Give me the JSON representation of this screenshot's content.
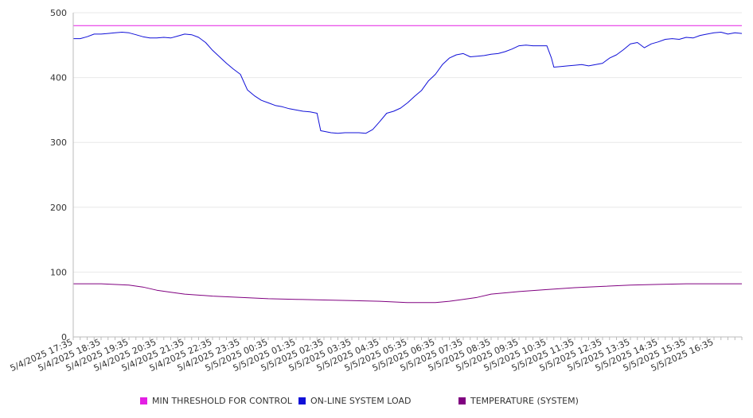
{
  "chart_data": {
    "type": "line",
    "title": "",
    "xlabel": "",
    "ylabel": "",
    "ylim": [
      0,
      500
    ],
    "yticks": [
      0,
      100,
      200,
      300,
      400,
      500
    ],
    "grid": true,
    "legend_position": "bottom",
    "x_tick_labels": [
      "5/4/2025 17:35",
      "5/4/2025 18:35",
      "5/4/2025 19:35",
      "5/4/2025 20:35",
      "5/4/2025 21:35",
      "5/4/2025 22:35",
      "5/4/2025 23:35",
      "5/5/2025 00:35",
      "5/5/2025 01:35",
      "5/5/2025 02:35",
      "5/5/2025 03:35",
      "5/5/2025 04:35",
      "5/5/2025 05:35",
      "5/5/2025 06:35",
      "5/5/2025 07:35",
      "5/5/2025 08:35",
      "5/5/2025 09:35",
      "5/5/2025 10:35",
      "5/5/2025 11:35",
      "5/5/2025 12:35",
      "5/5/2025 13:35",
      "5/5/2025 14:35",
      "5/5/2025 15:35",
      "5/5/2025 16:35"
    ],
    "x_range": [
      "5/4/2025 17:35",
      "5/5/2025 17:35"
    ],
    "series": [
      {
        "name": "MIN THRESHOLD FOR CONTROL",
        "color": "#e31fe3",
        "points": [
          [
            "5/4/2025 17:35",
            480
          ],
          [
            "5/5/2025 17:35",
            480
          ]
        ]
      },
      {
        "name": "ON-LINE SYSTEM LOAD",
        "color": "#1010d8",
        "points": [
          [
            "5/4/2025 17:35",
            460
          ],
          [
            "5/4/2025 17:50",
            460
          ],
          [
            "5/4/2025 18:05",
            463
          ],
          [
            "5/4/2025 18:20",
            467
          ],
          [
            "5/4/2025 18:35",
            467
          ],
          [
            "5/4/2025 18:50",
            468
          ],
          [
            "5/4/2025 19:05",
            469
          ],
          [
            "5/4/2025 19:20",
            470
          ],
          [
            "5/4/2025 19:35",
            469
          ],
          [
            "5/4/2025 19:50",
            466
          ],
          [
            "5/4/2025 20:05",
            463
          ],
          [
            "5/4/2025 20:20",
            461
          ],
          [
            "5/4/2025 20:35",
            461
          ],
          [
            "5/4/2025 20:50",
            462
          ],
          [
            "5/4/2025 21:05",
            461
          ],
          [
            "5/4/2025 21:20",
            464
          ],
          [
            "5/4/2025 21:35",
            467
          ],
          [
            "5/4/2025 21:50",
            466
          ],
          [
            "5/4/2025 22:05",
            462
          ],
          [
            "5/4/2025 22:20",
            454
          ],
          [
            "5/4/2025 22:35",
            442
          ],
          [
            "5/4/2025 22:50",
            432
          ],
          [
            "5/4/2025 23:05",
            422
          ],
          [
            "5/4/2025 23:20",
            413
          ],
          [
            "5/4/2025 23:35",
            405
          ],
          [
            "5/4/2025 23:50",
            381
          ],
          [
            "5/5/2025 00:05",
            372
          ],
          [
            "5/5/2025 00:20",
            365
          ],
          [
            "5/5/2025 00:35",
            361
          ],
          [
            "5/5/2025 00:50",
            357
          ],
          [
            "5/5/2025 01:05",
            355
          ],
          [
            "5/5/2025 01:20",
            352
          ],
          [
            "5/5/2025 01:35",
            350
          ],
          [
            "5/5/2025 01:50",
            348
          ],
          [
            "5/5/2025 02:05",
            347
          ],
          [
            "5/5/2025 02:20",
            345
          ],
          [
            "5/5/2025 02:28",
            318
          ],
          [
            "5/5/2025 02:35",
            317
          ],
          [
            "5/5/2025 02:50",
            315
          ],
          [
            "5/5/2025 03:05",
            314
          ],
          [
            "5/5/2025 03:20",
            315
          ],
          [
            "5/5/2025 03:35",
            315
          ],
          [
            "5/5/2025 03:50",
            315
          ],
          [
            "5/5/2025 04:05",
            314
          ],
          [
            "5/5/2025 04:20",
            320
          ],
          [
            "5/5/2025 04:35",
            332
          ],
          [
            "5/5/2025 04:50",
            345
          ],
          [
            "5/5/2025 05:05",
            348
          ],
          [
            "5/5/2025 05:20",
            353
          ],
          [
            "5/5/2025 05:35",
            361
          ],
          [
            "5/5/2025 05:50",
            371
          ],
          [
            "5/5/2025 06:05",
            380
          ],
          [
            "5/5/2025 06:20",
            395
          ],
          [
            "5/5/2025 06:35",
            405
          ],
          [
            "5/5/2025 06:50",
            420
          ],
          [
            "5/5/2025 07:05",
            430
          ],
          [
            "5/5/2025 07:20",
            435
          ],
          [
            "5/5/2025 07:35",
            437
          ],
          [
            "5/5/2025 07:50",
            432
          ],
          [
            "5/5/2025 08:05",
            433
          ],
          [
            "5/5/2025 08:20",
            434
          ],
          [
            "5/5/2025 08:35",
            436
          ],
          [
            "5/5/2025 08:50",
            437
          ],
          [
            "5/5/2025 09:05",
            440
          ],
          [
            "5/5/2025 09:20",
            444
          ],
          [
            "5/5/2025 09:35",
            449
          ],
          [
            "5/5/2025 09:50",
            450
          ],
          [
            "5/5/2025 10:05",
            449
          ],
          [
            "5/5/2025 10:20",
            449
          ],
          [
            "5/5/2025 10:35",
            449
          ],
          [
            "5/5/2025 10:45",
            430
          ],
          [
            "5/5/2025 10:50",
            416
          ],
          [
            "5/5/2025 11:05",
            417
          ],
          [
            "5/5/2025 11:20",
            418
          ],
          [
            "5/5/2025 11:35",
            419
          ],
          [
            "5/5/2025 11:50",
            420
          ],
          [
            "5/5/2025 12:05",
            418
          ],
          [
            "5/5/2025 12:20",
            420
          ],
          [
            "5/5/2025 12:35",
            422
          ],
          [
            "5/5/2025 12:50",
            430
          ],
          [
            "5/5/2025 13:05",
            435
          ],
          [
            "5/5/2025 13:20",
            443
          ],
          [
            "5/5/2025 13:35",
            452
          ],
          [
            "5/5/2025 13:50",
            454
          ],
          [
            "5/5/2025 14:05",
            446
          ],
          [
            "5/5/2025 14:20",
            452
          ],
          [
            "5/5/2025 14:35",
            455
          ],
          [
            "5/5/2025 14:50",
            459
          ],
          [
            "5/5/2025 15:05",
            460
          ],
          [
            "5/5/2025 15:20",
            459
          ],
          [
            "5/5/2025 15:35",
            462
          ],
          [
            "5/5/2025 15:50",
            461
          ],
          [
            "5/5/2025 16:05",
            465
          ],
          [
            "5/5/2025 16:20",
            467
          ],
          [
            "5/5/2025 16:35",
            469
          ],
          [
            "5/5/2025 16:50",
            470
          ],
          [
            "5/5/2025 17:05",
            467
          ],
          [
            "5/5/2025 17:20",
            469
          ],
          [
            "5/5/2025 17:35",
            468
          ]
        ]
      },
      {
        "name": "TEMPERATURE (SYSTEM)",
        "color": "#800080",
        "points": [
          [
            "5/4/2025 17:35",
            82
          ],
          [
            "5/4/2025 18:35",
            82
          ],
          [
            "5/4/2025 19:35",
            80
          ],
          [
            "5/4/2025 20:05",
            77
          ],
          [
            "5/4/2025 20:35",
            72
          ],
          [
            "5/4/2025 21:05",
            69
          ],
          [
            "5/4/2025 21:35",
            66
          ],
          [
            "5/4/2025 22:35",
            63
          ],
          [
            "5/4/2025 23:35",
            61
          ],
          [
            "5/5/2025 00:35",
            59
          ],
          [
            "5/5/2025 01:35",
            58
          ],
          [
            "5/5/2025 02:35",
            57
          ],
          [
            "5/5/2025 03:35",
            56
          ],
          [
            "5/5/2025 04:35",
            55
          ],
          [
            "5/5/2025 05:35",
            53
          ],
          [
            "5/5/2025 06:35",
            53
          ],
          [
            "5/5/2025 07:05",
            55
          ],
          [
            "5/5/2025 07:35",
            58
          ],
          [
            "5/5/2025 08:05",
            61
          ],
          [
            "5/5/2025 08:35",
            66
          ],
          [
            "5/5/2025 09:35",
            70
          ],
          [
            "5/5/2025 10:35",
            73
          ],
          [
            "5/5/2025 11:35",
            76
          ],
          [
            "5/5/2025 12:35",
            78
          ],
          [
            "5/5/2025 13:35",
            80
          ],
          [
            "5/5/2025 14:35",
            81
          ],
          [
            "5/5/2025 15:35",
            82
          ],
          [
            "5/5/2025 16:35",
            82
          ],
          [
            "5/5/2025 17:35",
            82
          ]
        ]
      }
    ]
  }
}
